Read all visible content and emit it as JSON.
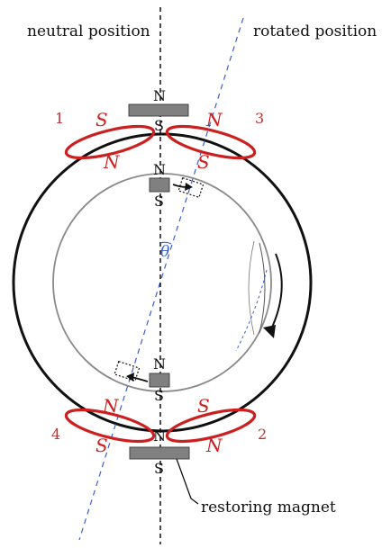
{
  "labels": {
    "neutral_position": "neutral position",
    "rotated_position": "rotated position",
    "restoring_magnet": "restoring magnet",
    "angle": "θ"
  },
  "coils": {
    "c1": {
      "number": "1",
      "pole_a": "S",
      "pole_b": "N"
    },
    "c2": {
      "number": "2",
      "pole_a": "S",
      "pole_b": "N"
    },
    "c3": {
      "number": "3",
      "pole_a": "N",
      "pole_b": "S"
    },
    "c4": {
      "number": "4",
      "pole_a": "N",
      "pole_b": "S"
    }
  },
  "magnets": {
    "top_fixed": {
      "north": "N",
      "south": "S"
    },
    "top_rotor": {
      "north": "N",
      "south": "S"
    },
    "bottom_rotor": {
      "north": "N",
      "south": "S"
    },
    "bottom_fixed": {
      "north": "N",
      "south": "S"
    }
  },
  "colors": {
    "coil": "#cc1f1f",
    "coil_label": "#b83232",
    "axis_blue": "#3a5fd0",
    "magnet": "#808080",
    "outer_ring": "#111111",
    "inner_ring": "#8a8a8a"
  }
}
